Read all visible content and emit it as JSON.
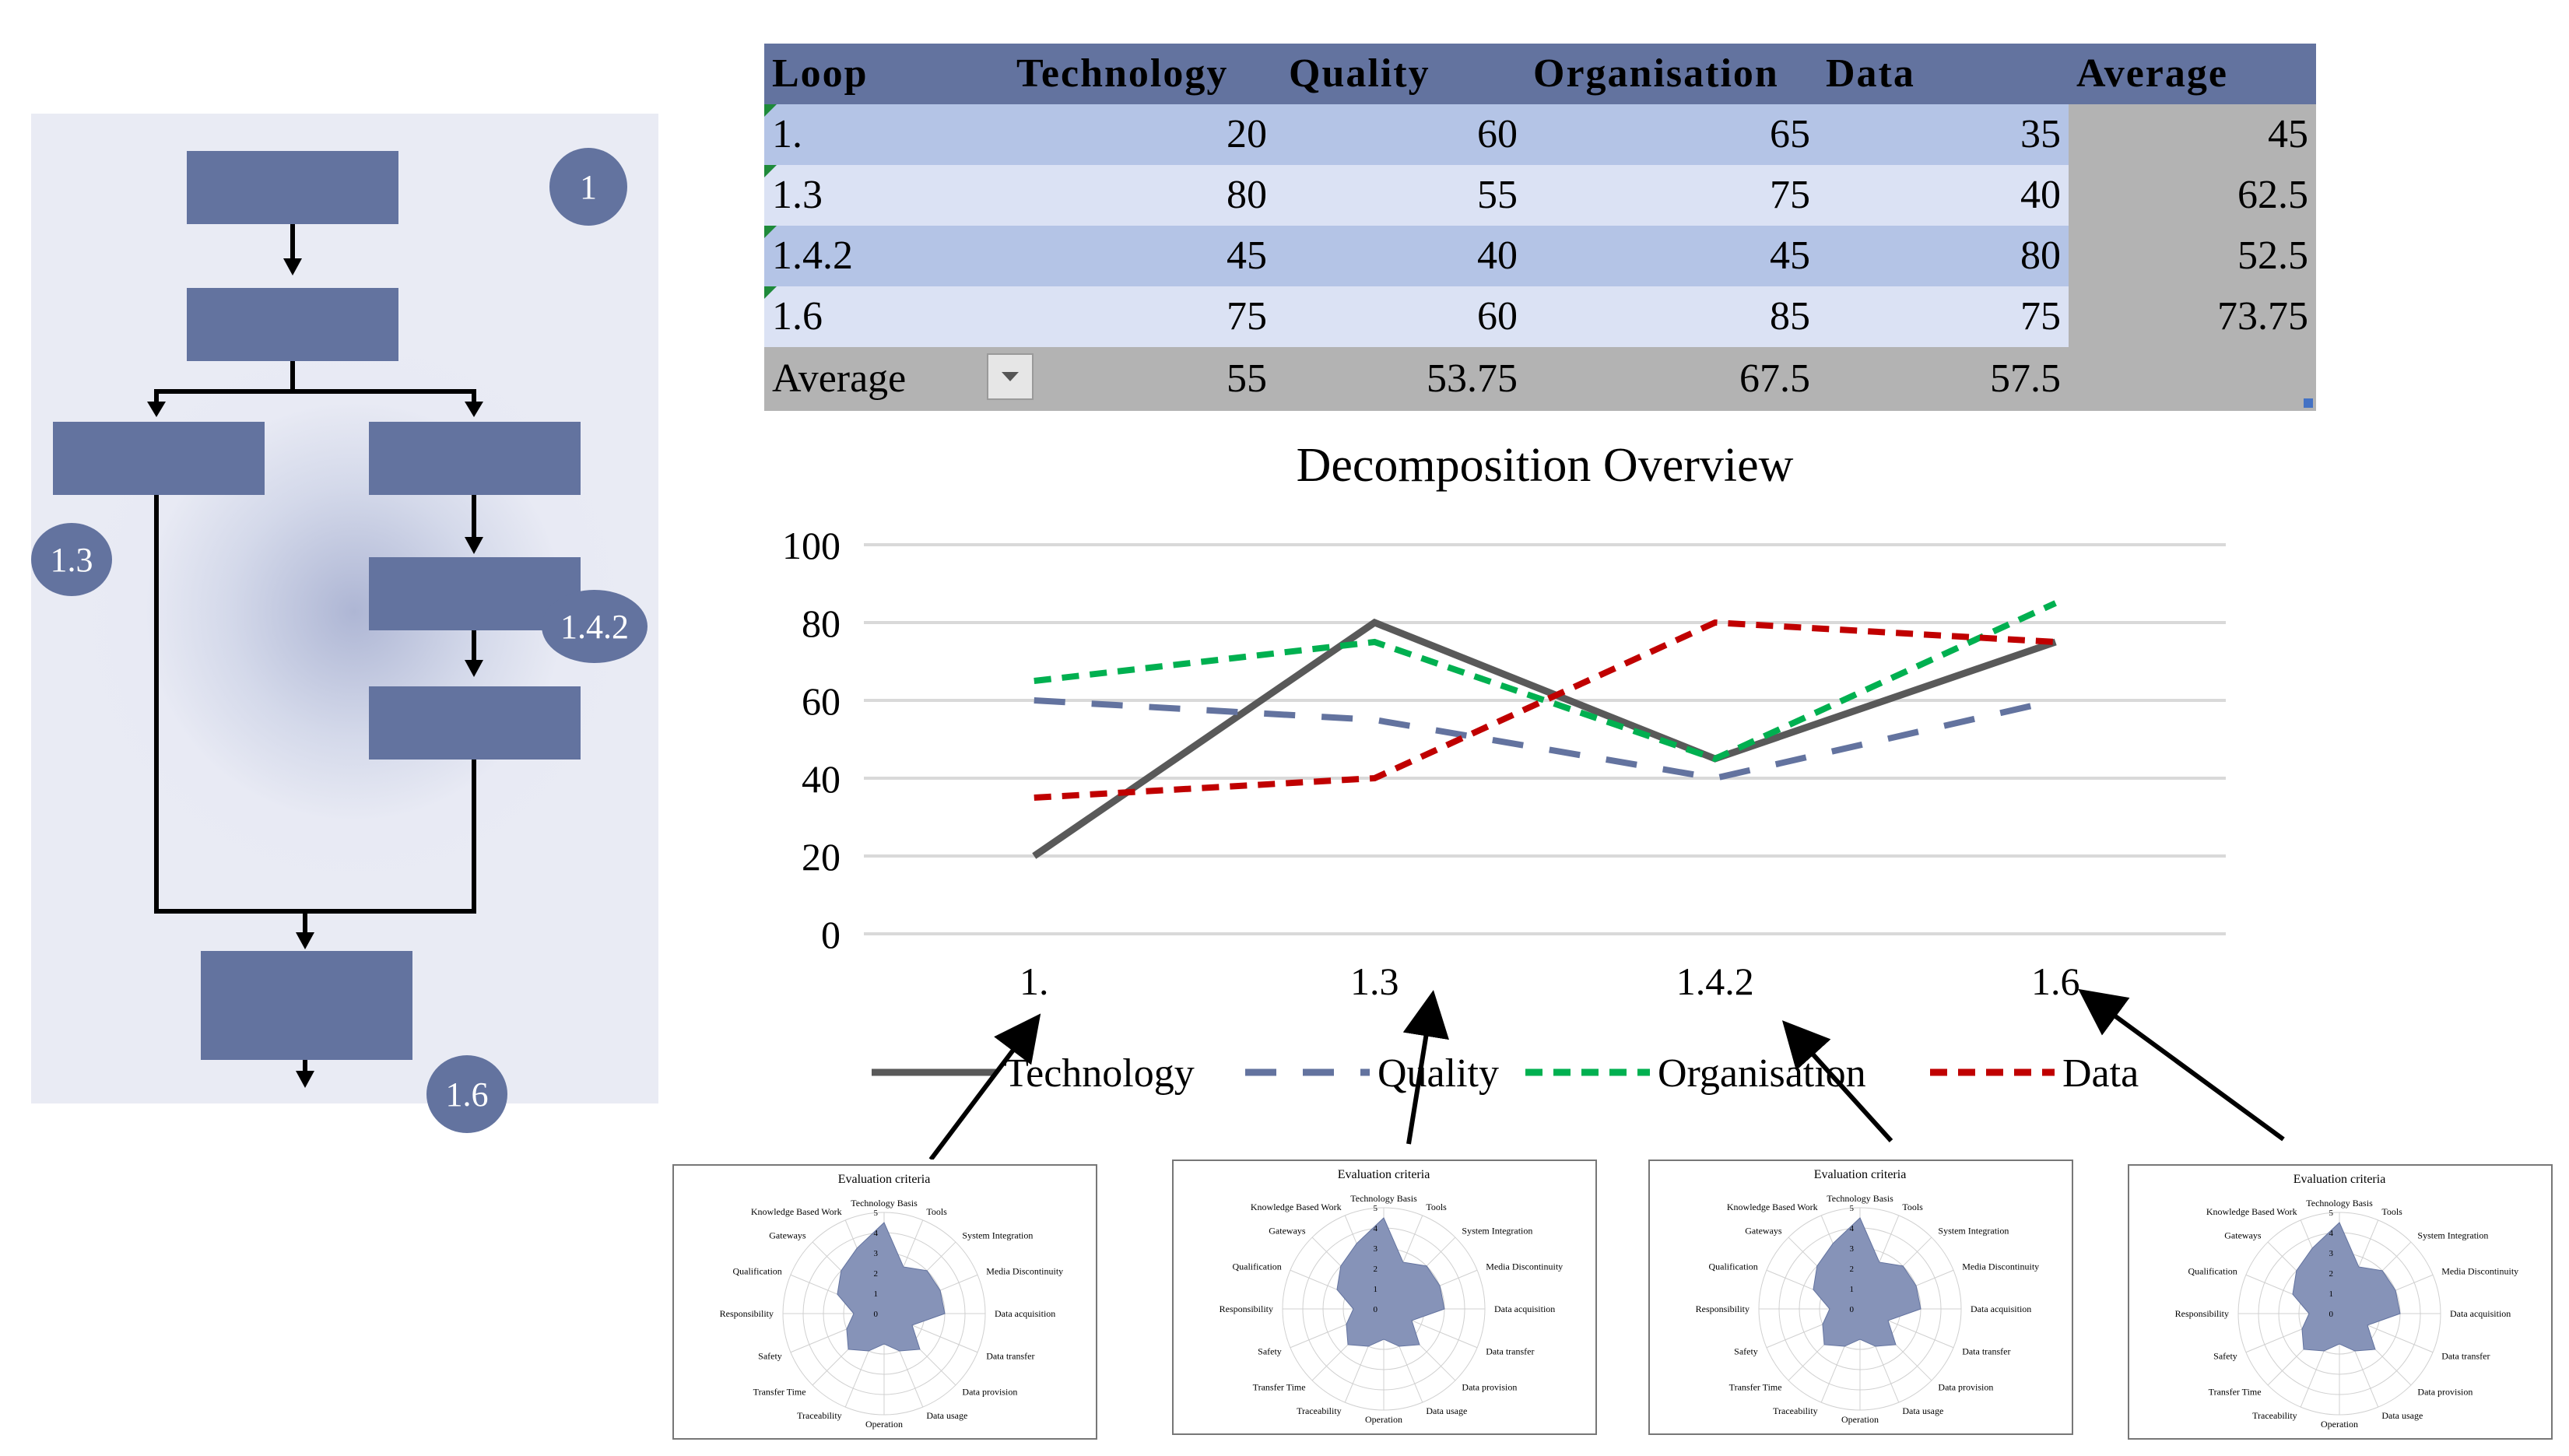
{
  "table": {
    "headers": [
      "Loop",
      "Technology",
      "Quality",
      "Organisation",
      "Data",
      "Average"
    ],
    "rows": [
      {
        "loop": "1.",
        "technology": "20",
        "quality": "60",
        "organisation": "65",
        "data": "35",
        "average": "45"
      },
      {
        "loop": "1.3",
        "technology": "80",
        "quality": "55",
        "organisation": "75",
        "data": "40",
        "average": "62.5"
      },
      {
        "loop": "1.4.2",
        "technology": "45",
        "quality": "40",
        "organisation": "45",
        "data": "80",
        "average": "52.5"
      },
      {
        "loop": "1.6",
        "technology": "75",
        "quality": "60",
        "organisation": "85",
        "data": "75",
        "average": "73.75"
      }
    ],
    "footer": {
      "label": "Average",
      "technology": "55",
      "quality": "53.75",
      "organisation": "67.5",
      "data": "57.5"
    }
  },
  "flowchart": {
    "badges": [
      "1",
      "1.3",
      "1.4.2",
      "1.6"
    ]
  },
  "chart_data": {
    "type": "line",
    "title": "Decomposition Overview",
    "categories": [
      "1.",
      "1.3",
      "1.4.2",
      "1.6"
    ],
    "ylim": [
      0,
      100
    ],
    "yticks": [
      "0",
      "20",
      "40",
      "60",
      "80",
      "100"
    ],
    "series": [
      {
        "name": "Technology",
        "values": [
          20,
          80,
          45,
          75
        ],
        "color": "#595959",
        "style": "solid"
      },
      {
        "name": "Quality",
        "values": [
          60,
          55,
          40,
          60
        ],
        "color": "#63739f",
        "style": "longdash"
      },
      {
        "name": "Organisation",
        "values": [
          65,
          75,
          45,
          85
        ],
        "color": "#00b050",
        "style": "dash"
      },
      {
        "name": "Data",
        "values": [
          35,
          40,
          80,
          75
        ],
        "color": "#c00000",
        "style": "dash"
      }
    ],
    "legend": "bottom"
  },
  "radar": {
    "title": "Evaluation criteria",
    "ticks": [
      "0",
      "1",
      "2",
      "3",
      "4",
      "5"
    ],
    "axes": [
      "Technology Basis",
      "Tools",
      "System Integration",
      "Media Discontinuity",
      "Data acquisition",
      "Data transfer",
      "Data provision",
      "Data usage",
      "Operation",
      "Traceability",
      "Transfer Time",
      "Safety",
      "Responsibility",
      "Qualification",
      "Gateways",
      "Knowledge Based Work"
    ],
    "charts": [
      {
        "values": [
          4.5,
          2.5,
          3,
          3,
          3,
          1.5,
          2.5,
          2,
          1.5,
          2,
          2.5,
          2,
          1.5,
          2.5,
          3,
          3.5
        ]
      },
      {
        "values": [
          4.5,
          2.5,
          3,
          3,
          3,
          1.5,
          2.5,
          2,
          1.5,
          2,
          2.5,
          2,
          1.5,
          2.5,
          3,
          3.5
        ]
      },
      {
        "values": [
          4.5,
          2.5,
          3,
          3,
          3,
          1.5,
          2.5,
          2,
          1.5,
          2,
          2.5,
          2,
          1.5,
          2.5,
          3,
          3.5
        ]
      },
      {
        "values": [
          4.5,
          2.5,
          3,
          3,
          3,
          1.5,
          2.5,
          2,
          1.5,
          2,
          2.5,
          2,
          1.5,
          2.5,
          3,
          3.5
        ]
      }
    ]
  }
}
